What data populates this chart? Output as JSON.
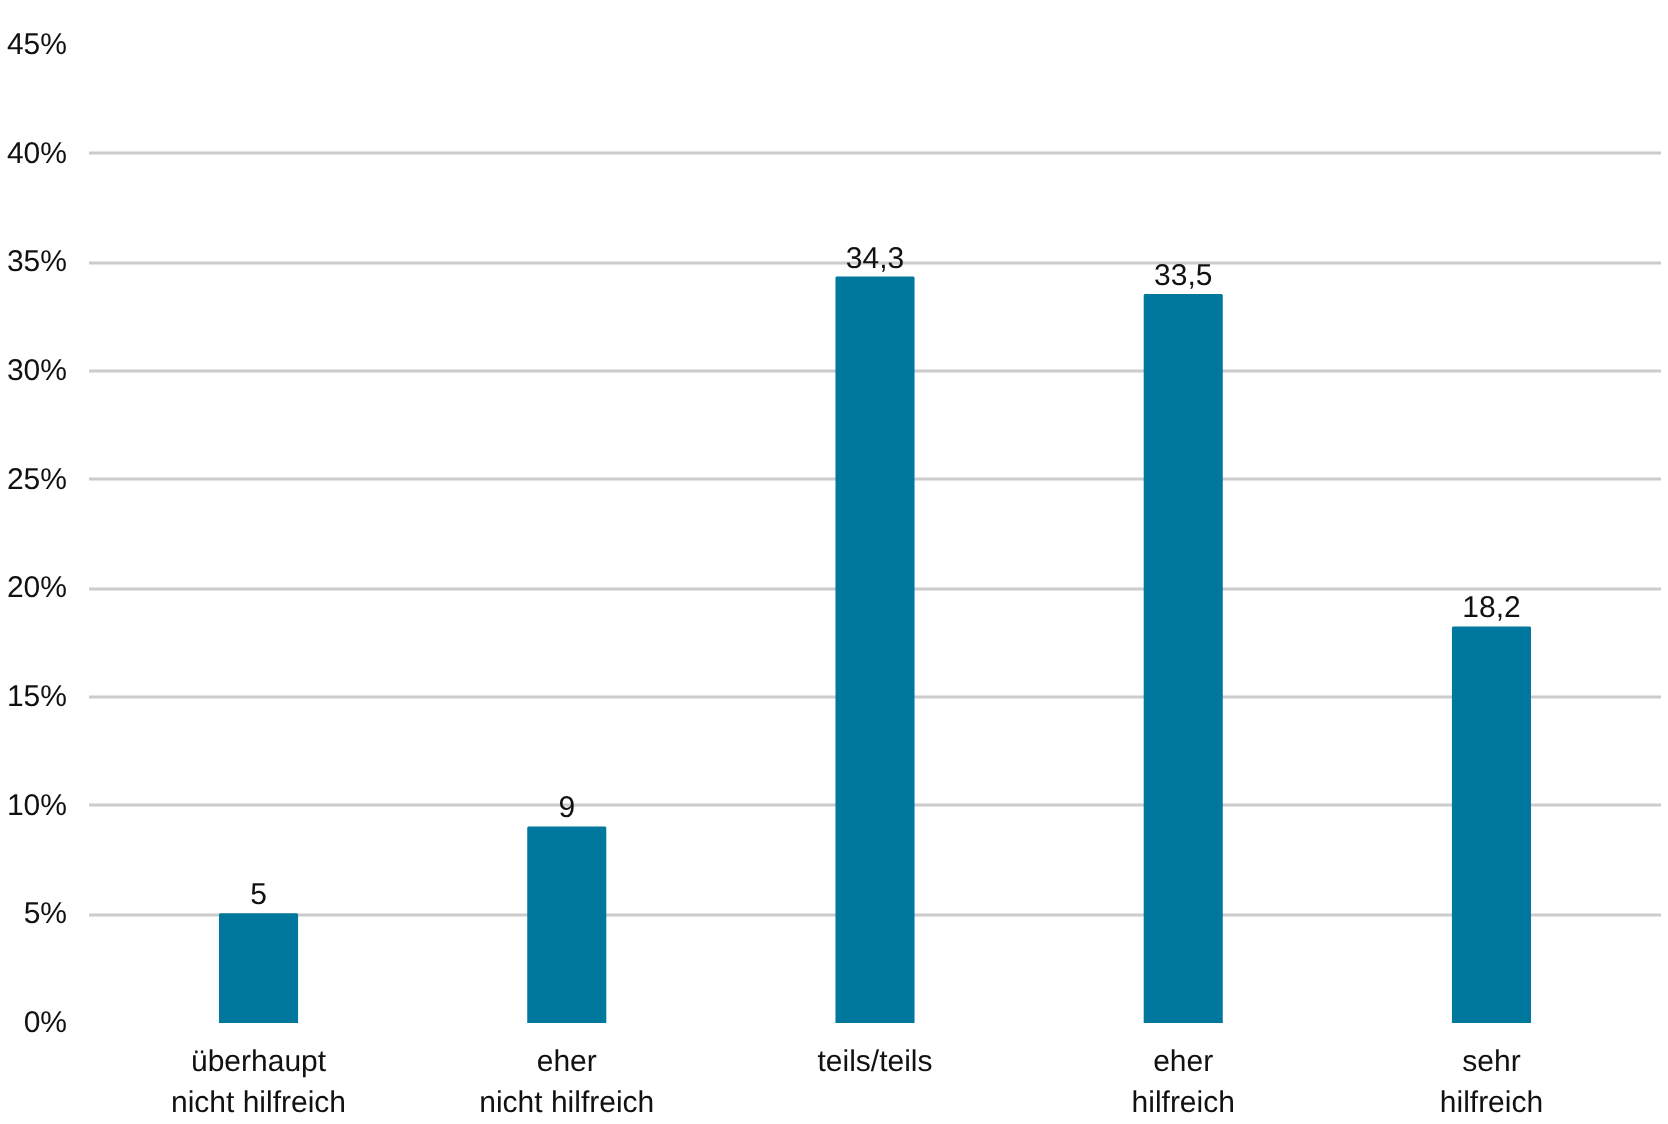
{
  "chart_data": {
    "type": "bar",
    "categories": [
      "überhaupt\nnicht hilfreich",
      "eher\nnicht hilfreich",
      "teils/teils",
      "eher\nhilfreich",
      "sehr\nhilfreich"
    ],
    "values": [
      5,
      9,
      34.3,
      33.5,
      18.2
    ],
    "value_labels": [
      "5",
      "9",
      "34,3",
      "33,5",
      "18,2"
    ],
    "color": "#00789e",
    "ylim": [
      0,
      45
    ],
    "yticks": [
      {
        "value": 0,
        "label": "0%"
      },
      {
        "value": 5,
        "label": "5%"
      },
      {
        "value": 10,
        "label": "10%"
      },
      {
        "value": 15,
        "label": "15%"
      },
      {
        "value": 20,
        "label": "20%"
      },
      {
        "value": 25,
        "label": "25%"
      },
      {
        "value": 30,
        "label": "30%"
      },
      {
        "value": 35,
        "label": "35%"
      },
      {
        "value": 40,
        "label": "40%"
      },
      {
        "value": 45,
        "label": "45%"
      }
    ],
    "grid": "y"
  }
}
